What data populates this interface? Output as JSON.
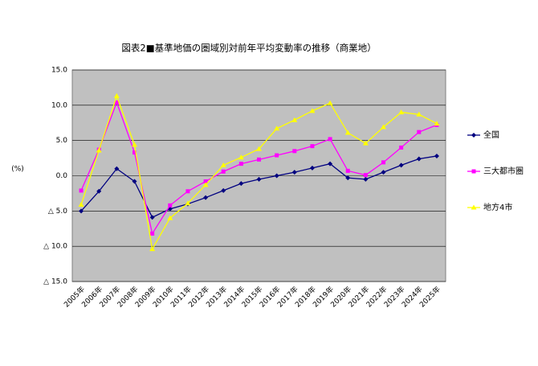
{
  "chart_data": {
    "type": "line",
    "title": "図表2■基準地価の圏域別対前年平均変動率の推移（商業地）",
    "y_label": "(%)",
    "categories": [
      "2005年",
      "2006年",
      "2007年",
      "2008年",
      "2009年",
      "2010年",
      "2011年",
      "2012年",
      "2013年",
      "2014年",
      "2015年",
      "2016年",
      "2017年",
      "2018年",
      "2019年",
      "2020年",
      "2021年",
      "2022年",
      "2023年",
      "2024年",
      "2025年"
    ],
    "series": [
      {
        "name": "全国",
        "color": "#000080",
        "marker": "diamond",
        "values": [
          -5.0,
          -2.2,
          1.0,
          -0.8,
          -5.9,
          -4.7,
          -4.0,
          -3.1,
          -2.1,
          -1.1,
          -0.5,
          0.0,
          0.5,
          1.1,
          1.7,
          -0.3,
          -0.5,
          0.5,
          1.5,
          2.4,
          2.8
        ]
      },
      {
        "name": "三大都市圏",
        "color": "#ff00ff",
        "marker": "square",
        "values": [
          -2.1,
          3.7,
          10.4,
          3.3,
          -8.2,
          -4.2,
          -2.2,
          -0.8,
          0.6,
          1.7,
          2.3,
          2.9,
          3.5,
          4.2,
          5.2,
          0.7,
          0.1,
          1.9,
          4.0,
          6.2,
          7.2
        ]
      },
      {
        "name": "地方4市",
        "color": "#ffff00",
        "marker": "triangle",
        "values": [
          -4.1,
          3.6,
          11.3,
          4.4,
          -10.4,
          -6.0,
          -3.9,
          -1.3,
          1.5,
          2.6,
          3.8,
          6.7,
          7.9,
          9.2,
          10.3,
          6.1,
          4.6,
          6.9,
          9.0,
          8.7,
          7.4
        ]
      }
    ],
    "ylim": [
      -15,
      15
    ],
    "yticks": [
      {
        "value": 15,
        "label": "15.0"
      },
      {
        "value": 10,
        "label": "10.0"
      },
      {
        "value": 5,
        "label": "5.0"
      },
      {
        "value": 0,
        "label": "0.0"
      },
      {
        "value": -5,
        "label": "△ 5.0"
      },
      {
        "value": -10,
        "label": "△ 10.0"
      },
      {
        "value": -15,
        "label": "△ 15.0"
      }
    ],
    "grid": true,
    "plot_background": "#c0c0c0",
    "legend": "right"
  }
}
